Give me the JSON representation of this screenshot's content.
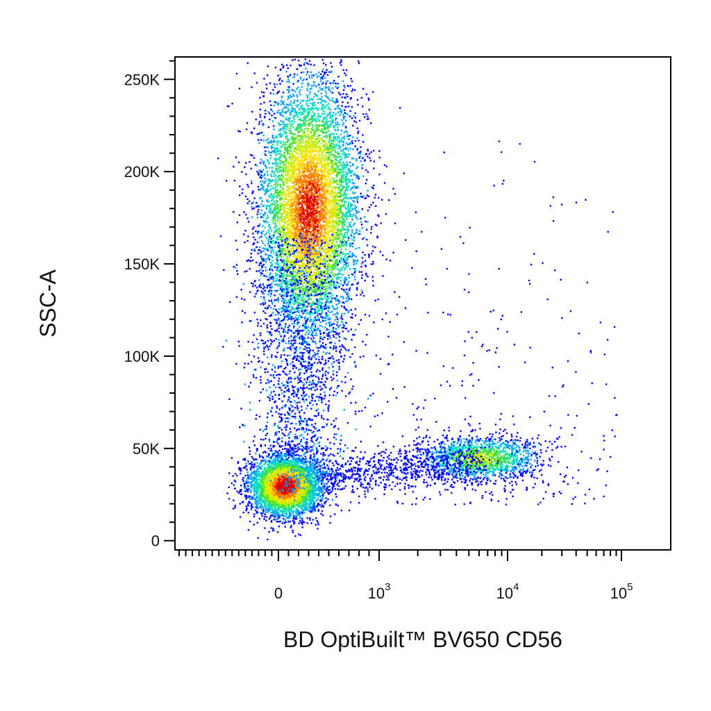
{
  "chart_data": {
    "type": "scatter",
    "style": "flow cytometry pseudocolor density dot plot",
    "xlabel": "BD OptiBuilt™ BV650 CD56",
    "ylabel": "SSC-A",
    "xscale": "biexponential (log above ~10^3, linear near 0)",
    "xlim": [
      -300,
      200000
    ],
    "ylim": [
      -5000,
      262144
    ],
    "xticks": [
      {
        "value": 0,
        "label": "0"
      },
      {
        "value": 1000,
        "base": "10",
        "exp": "3"
      },
      {
        "value": 10000,
        "base": "10",
        "exp": "4"
      },
      {
        "value": 100000,
        "base": "10",
        "exp": "5"
      }
    ],
    "yticks": [
      {
        "value": 0,
        "label": "0"
      },
      {
        "value": 50000,
        "label": "50K"
      },
      {
        "value": 100000,
        "label": "100K"
      },
      {
        "value": 150000,
        "label": "150K"
      },
      {
        "value": 200000,
        "label": "200K"
      },
      {
        "value": 250000,
        "label": "250K"
      }
    ],
    "grid": false,
    "colormap": [
      "#0000ff",
      "#00a0ff",
      "#00e0c0",
      "#40e040",
      "#c0f000",
      "#ffe000",
      "#ff8000",
      "#e00000"
    ],
    "populations": [
      {
        "name": "lymphocytes",
        "x_center": 60,
        "y_center": 30000,
        "density": "highest"
      },
      {
        "name": "granulocytes",
        "x_center": 300,
        "y_center": 180000,
        "density": "high"
      },
      {
        "name": "CD56+ NK cells",
        "x_center": 6000,
        "y_center": 45000,
        "density": "medium"
      }
    ]
  }
}
